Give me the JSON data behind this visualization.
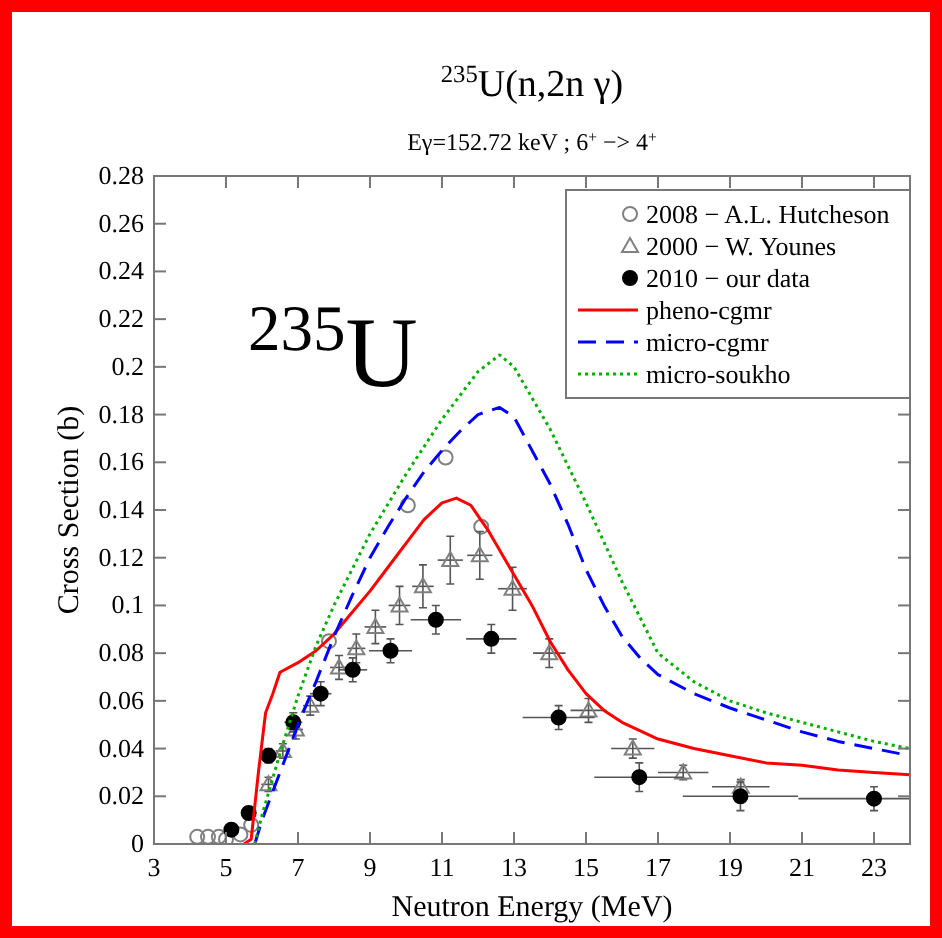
{
  "chart_data": {
    "type": "scatter",
    "title": "$^{235}$U(n,2n γ)",
    "subtitle": "Eγ=152.72 keV ; 6$^{+}$ −> 4$^{+}$",
    "xlabel": "Neutron Energy (MeV)",
    "ylabel": "Cross Section (b)",
    "annotations": [
      "$^{235}$U"
    ],
    "xlim": [
      3,
      24
    ],
    "xticks": [
      3,
      5,
      7,
      9,
      11,
      13,
      15,
      17,
      19,
      21,
      23
    ],
    "ylim": [
      0,
      0.28
    ],
    "yticks": [
      0,
      0.02,
      0.04,
      0.06,
      0.08,
      0.1,
      0.12,
      0.14,
      0.16,
      0.18,
      0.2,
      0.22,
      0.24,
      0.26,
      0.28
    ],
    "grid": false,
    "legend": "top right",
    "series": [
      {
        "name": "2008 − A.L. Hutcheson",
        "marker": "circle",
        "color": "#808080",
        "x": [
          4.2,
          4.5,
          4.8,
          5.0,
          5.4,
          5.7,
          7.86,
          10.05,
          11.1,
          12.09
        ],
        "values": [
          0.003,
          0.003,
          0.003,
          0.002,
          0.004,
          0.008,
          0.085,
          0.142,
          0.162,
          0.133
        ]
      },
      {
        "name": "2000 − W. Younes",
        "marker": "triangle",
        "color": "#808080",
        "x": [
          6.18,
          6.58,
          6.94,
          7.34,
          8.14,
          8.62,
          9.15,
          9.82,
          10.47,
          11.23,
          12.05,
          12.96,
          13.98,
          15.07,
          16.3,
          17.7,
          19.3
        ],
        "values": [
          0.025,
          0.039,
          0.048,
          0.058,
          0.074,
          0.082,
          0.091,
          0.1,
          0.108,
          0.119,
          0.121,
          0.107,
          0.08,
          0.056,
          0.04,
          0.03,
          0.024
        ],
        "errors": [
          0.003,
          0.003,
          0.004,
          0.004,
          0.005,
          0.006,
          0.007,
          0.008,
          0.009,
          0.01,
          0.01,
          0.009,
          0.006,
          0.005,
          0.004,
          0.003,
          0.003
        ],
        "xerrors": [
          0.2,
          0.2,
          0.2,
          0.2,
          0.25,
          0.25,
          0.3,
          0.3,
          0.3,
          0.35,
          0.35,
          0.4,
          0.45,
          0.5,
          0.6,
          0.7,
          0.8
        ]
      },
      {
        "name": "2010 − our data",
        "marker": "circle",
        "color": "#000000",
        "x": [
          5.15,
          5.63,
          6.18,
          6.87,
          7.63,
          8.52,
          9.57,
          10.83,
          12.37,
          14.24,
          16.48,
          19.29,
          23.0
        ],
        "values": [
          0.006,
          0.013,
          0.037,
          0.051,
          0.063,
          0.073,
          0.081,
          0.094,
          0.086,
          0.053,
          0.028,
          0.02,
          0.019
        ],
        "errors": [
          null,
          null,
          0.003,
          0.004,
          0.005,
          0.005,
          0.005,
          0.006,
          0.006,
          0.005,
          0.006,
          0.006,
          0.005
        ],
        "xerrors": [
          0.2,
          0.2,
          0.2,
          0.25,
          0.3,
          0.4,
          0.6,
          0.7,
          0.7,
          1.0,
          1.25,
          1.6,
          [
            20.9,
            24
          ]
        ]
      },
      {
        "name": "pheno-cgmr",
        "type": "line",
        "line_style": "solid",
        "marker": "none",
        "color": "#ff0000",
        "x": [
          5.5,
          5.7,
          5.9,
          6.1,
          6.3,
          6.5,
          7,
          7.5,
          8,
          8.5,
          9,
          9.5,
          10,
          10.5,
          11,
          11.4,
          11.8,
          12.3,
          12.8,
          13.5,
          14,
          14.5,
          15,
          15.5,
          16,
          17,
          18,
          19,
          20,
          21,
          22,
          23,
          24
        ],
        "values": [
          0,
          0.002,
          0.03,
          0.055,
          0.063,
          0.072,
          0.076,
          0.081,
          0.088,
          0.097,
          0.106,
          0.116,
          0.126,
          0.136,
          0.143,
          0.145,
          0.142,
          0.131,
          0.118,
          0.1,
          0.085,
          0.073,
          0.063,
          0.056,
          0.051,
          0.044,
          0.04,
          0.037,
          0.034,
          0.033,
          0.031,
          0.03,
          0.029
        ]
      },
      {
        "name": "micro-cgmr",
        "type": "line",
        "line_style": "dashed",
        "marker": "none",
        "color": "#0000ff",
        "x": [
          5.8,
          6,
          6.5,
          7,
          7.5,
          8,
          8.5,
          9,
          9.5,
          10,
          10.5,
          11,
          11.5,
          12,
          12.6,
          13,
          14,
          14.5,
          15,
          15.5,
          16,
          16.5,
          17,
          18,
          19,
          20,
          21,
          22,
          23,
          24
        ],
        "values": [
          0,
          0.01,
          0.03,
          0.05,
          0.068,
          0.087,
          0.104,
          0.12,
          0.133,
          0.145,
          0.156,
          0.165,
          0.173,
          0.18,
          0.183,
          0.179,
          0.151,
          0.134,
          0.115,
          0.1,
          0.087,
          0.078,
          0.071,
          0.063,
          0.057,
          0.052,
          0.047,
          0.043,
          0.04,
          0.037
        ]
      },
      {
        "name": "micro-soukho",
        "type": "line",
        "line_style": "dotted",
        "marker": "none",
        "color": "#00b000",
        "x": [
          5.8,
          6,
          6.5,
          7,
          7.5,
          8,
          9,
          10,
          11,
          12,
          12.6,
          13,
          14,
          15,
          16,
          17,
          18,
          19,
          20,
          21,
          22,
          23,
          24
        ],
        "values": [
          0,
          0.012,
          0.038,
          0.062,
          0.083,
          0.1,
          0.13,
          0.155,
          0.178,
          0.198,
          0.205,
          0.2,
          0.174,
          0.143,
          0.11,
          0.08,
          0.068,
          0.06,
          0.055,
          0.051,
          0.047,
          0.043,
          0.04
        ]
      }
    ]
  }
}
